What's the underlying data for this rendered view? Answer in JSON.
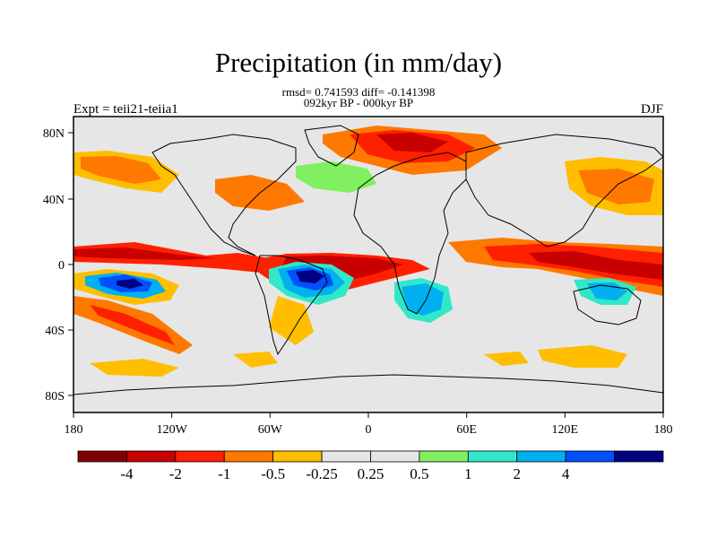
{
  "title": "Precipitation (in mm/day)",
  "stats": "rmsd= 0.741593 diff= -0.141398",
  "period": "092kyr BP - 000kyr BP",
  "experiment": "Expt = teii21-teiia1",
  "season": "DJF",
  "x_ticks": [
    "180",
    "120W",
    "60W",
    "0",
    "60E",
    "120E",
    "180"
  ],
  "y_ticks": [
    "80N",
    "40N",
    "0",
    "40S",
    "80S"
  ],
  "colorbar": {
    "colors": [
      "#7f0000",
      "#c80000",
      "#ff2000",
      "#ff7800",
      "#ffbe00",
      "#e6e6e6",
      "#e6e6e6",
      "#80f060",
      "#30e8c8",
      "#00b0f0",
      "#0050ff",
      "#000080"
    ],
    "labels": [
      "-4",
      "-2",
      "-1",
      "-0.5",
      "-0.25",
      "0.25",
      "0.5",
      "1",
      "2",
      "4"
    ]
  }
}
